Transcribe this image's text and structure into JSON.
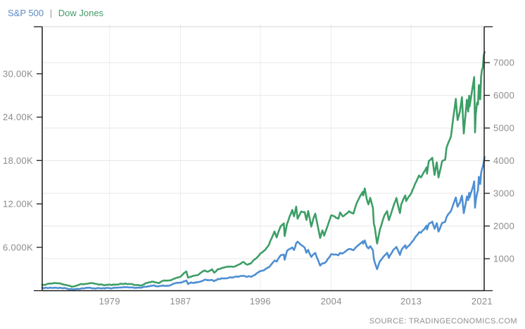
{
  "legend": {
    "separator": "|",
    "separator_color": "#999999",
    "items": [
      {
        "label": "S&P 500",
        "color": "#5b8ac5"
      },
      {
        "label": "Dow Jones",
        "color": "#449c68"
      }
    ]
  },
  "source": {
    "label": "SOURCE: TRADINGECONOMICS.COM",
    "color": "#8f8f8f"
  },
  "chart_data": {
    "type": "line",
    "title": "",
    "xlabel": "",
    "ylabel": "",
    "x_range": [
      1971.4,
      2021.25
    ],
    "x_tick_years": [
      1979,
      1987,
      1996,
      2004,
      2013,
      2021
    ],
    "grid": {
      "horizontal_follows": "right_axis",
      "vertical_at_x_ticks": true
    },
    "axes": {
      "left": {
        "frame_min": 0,
        "frame_max": 36500,
        "ticks": [
          {
            "value": 6000,
            "label": "6.000K"
          },
          {
            "value": 12000,
            "label": "12.00K"
          },
          {
            "value": 18000,
            "label": "18.00K"
          },
          {
            "value": 24000,
            "label": "24.00K"
          },
          {
            "value": 30000,
            "label": "30.00K"
          }
        ]
      },
      "right": {
        "frame_min": 20,
        "frame_max": 8100,
        "ticks": [
          {
            "value": 1000,
            "label": "1000"
          },
          {
            "value": 2000,
            "label": "2000"
          },
          {
            "value": 3000,
            "label": "3000"
          },
          {
            "value": 4000,
            "label": "4000"
          },
          {
            "value": 5000,
            "label": "5000"
          },
          {
            "value": 6000,
            "label": "6000"
          },
          {
            "value": 7000,
            "label": "7000"
          }
        ]
      }
    },
    "x": [
      1971.4,
      1972,
      1972.9,
      1973.5,
      1974,
      1974.75,
      1975.5,
      1976.8,
      1978.2,
      1979,
      1980,
      1980.9,
      1981.7,
      1982.6,
      1983,
      1983.9,
      1984.5,
      1985,
      1986,
      1987,
      1987.65,
      1987.85,
      1988.2,
      1989,
      1989.75,
      1990.1,
      1990.55,
      1990.8,
      1991.2,
      1992,
      1993,
      1994.1,
      1994.5,
      1995,
      1996,
      1996.5,
      1997,
      1997.6,
      1997.85,
      1998.3,
      1998.65,
      1998.75,
      1999,
      1999.6,
      1999.8,
      2000.05,
      2000.2,
      2000.6,
      2001,
      2001.2,
      2001.4,
      2001.75,
      2002,
      2002.2,
      2002.75,
      2003,
      2003.2,
      2004,
      2004.8,
      2005,
      2005.3,
      2006,
      2006.5,
      2007,
      2007.55,
      2007.6,
      2007.78,
      2008,
      2008.2,
      2008.4,
      2008.7,
      2008.8,
      2008.9,
      2009.17,
      2009.5,
      2010,
      2010.3,
      2010.5,
      2011,
      2011.35,
      2011.75,
      2011.9,
      2012,
      2012.35,
      2012.45,
      2013,
      2013.9,
      2014.1,
      2014.75,
      2014.8,
      2015,
      2015.4,
      2015.65,
      2015.9,
      2016.1,
      2016.5,
      2016.85,
      2017,
      2017.5,
      2018.05,
      2018.25,
      2018.5,
      2018.74,
      2018.95,
      2019.3,
      2019.45,
      2019.55,
      2019.6,
      2020,
      2020.12,
      2020.22,
      2020.3,
      2020.45,
      2020.55,
      2020.65,
      2020.8,
      2020.9,
      2021,
      2021.1,
      2021.2,
      2021.3
    ],
    "series": [
      {
        "name": "S&P 500",
        "axis": "right",
        "color": "#4e8fd2",
        "values": [
          100,
          103,
          118,
          104,
          96,
          65,
          90,
          103,
          89,
          100,
          106,
          135,
          122,
          109,
          145,
          166,
          151,
          170,
          208,
          264,
          329,
          230,
          258,
          285,
          350,
          330,
          361,
          300,
          370,
          416,
          435,
          482,
          445,
          465,
          615,
          670,
          740,
          950,
          915,
          1100,
          1120,
          957,
          1230,
          1360,
          1280,
          1470,
          1527,
          1430,
          1320,
          1160,
          1260,
          1040,
          1130,
          1170,
          800,
          855,
          840,
          1130,
          1100,
          1180,
          1160,
          1280,
          1270,
          1420,
          1530,
          1455,
          1560,
          1380,
          1320,
          1400,
          1280,
          1000,
          900,
          700,
          920,
          1115,
          1180,
          1030,
          1280,
          1360,
          1130,
          1250,
          1310,
          1400,
          1310,
          1480,
          1800,
          1780,
          2000,
          1900,
          2060,
          2120,
          1920,
          2080,
          1830,
          2100,
          2140,
          2280,
          2450,
          2870,
          2600,
          2720,
          2930,
          2400,
          2900,
          2800,
          3020,
          2880,
          3230,
          3380,
          2580,
          2800,
          3000,
          3100,
          3500,
          3270,
          3620,
          3760,
          3810,
          3940,
          4100
        ]
      },
      {
        "name": "Dow Jones",
        "axis": "left",
        "color": "#3d9e66",
        "values": [
          880,
          900,
          1020,
          880,
          850,
          600,
          840,
          1000,
          745,
          840,
          850,
          990,
          850,
          790,
          1050,
          1270,
          1100,
          1290,
          1550,
          1950,
          2700,
          1770,
          2000,
          2200,
          2790,
          2630,
          2900,
          2400,
          2900,
          3230,
          3310,
          3980,
          3650,
          3840,
          5120,
          5600,
          6450,
          8200,
          7400,
          9000,
          9340,
          7540,
          9180,
          11200,
          10300,
          11700,
          10000,
          10900,
          10800,
          9800,
          11000,
          8840,
          10000,
          10600,
          7300,
          8350,
          7700,
          10450,
          9900,
          10780,
          10200,
          10950,
          10750,
          12460,
          13700,
          13200,
          14100,
          12650,
          11900,
          12800,
          11500,
          9300,
          8800,
          6600,
          8500,
          10430,
          11000,
          9770,
          11580,
          12800,
          10700,
          11950,
          12220,
          13200,
          12400,
          13400,
          16000,
          15700,
          17000,
          16100,
          17830,
          18300,
          16000,
          17700,
          15700,
          17900,
          18100,
          19760,
          21400,
          26600,
          23600,
          24800,
          26800,
          21800,
          26400,
          24800,
          27000,
          25500,
          28540,
          29550,
          21900,
          24300,
          26000,
          25800,
          28400,
          26500,
          29600,
          30600,
          30900,
          32600,
          33100
        ]
      }
    ],
    "style": {
      "axis_line_color": "#1a1a1a",
      "top_border_color": "#dcdcdc",
      "h_grid_color": "#e7e7e7",
      "v_grid_color": "#ededed",
      "tick_label_color": "#8c8c8c"
    }
  }
}
